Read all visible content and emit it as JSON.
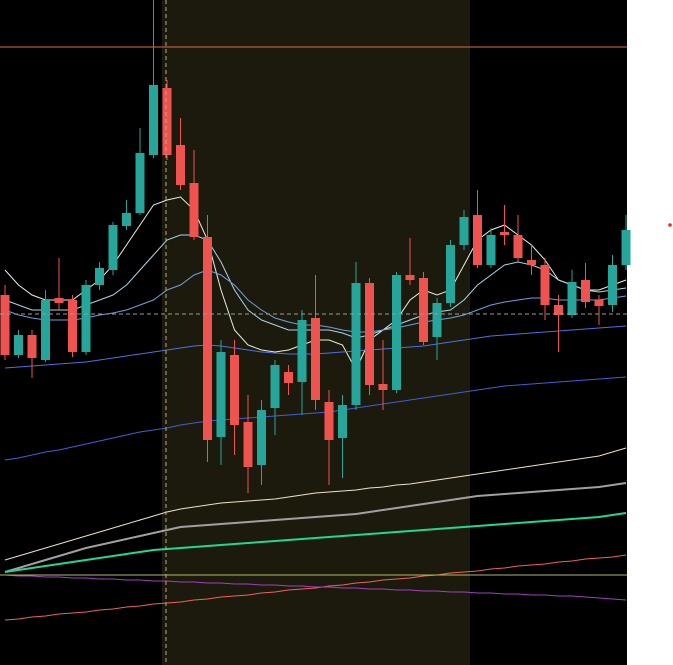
{
  "chart_data": {
    "type": "candlestick",
    "categories": [
      null,
      null,
      null,
      null,
      null,
      null,
      null,
      null,
      null,
      null,
      null,
      null,
      null,
      null,
      null,
      null,
      null,
      null,
      null,
      null,
      null,
      null,
      null,
      null,
      null,
      null,
      null,
      null,
      null,
      null,
      null,
      null,
      null,
      null,
      null,
      null,
      null,
      null,
      null,
      null,
      null,
      null,
      null,
      null,
      null,
      null,
      null
    ],
    "open": [
      370,
      310,
      330,
      305,
      367,
      365,
      313,
      380,
      395,
      439,
      452,
      510,
      577,
      520,
      482,
      428,
      228,
      310,
      243,
      200,
      257,
      293,
      283,
      347,
      263,
      227,
      260,
      382,
      281,
      275,
      390,
      387,
      328,
      362,
      420,
      450,
      400,
      433,
      430,
      405,
      400,
      360,
      350,
      385,
      365,
      360,
      400
    ],
    "close": [
      310,
      330,
      307,
      365,
      362,
      313,
      380,
      397,
      440,
      452,
      512,
      580,
      510,
      480,
      428,
      225,
      313,
      240,
      198,
      255,
      300,
      282,
      345,
      265,
      225,
      260,
      382,
      280,
      275,
      390,
      385,
      323,
      362,
      420,
      448,
      400,
      430,
      430,
      407,
      400,
      360,
      350,
      383,
      363,
      359,
      400,
      435
    ],
    "high": [
      380,
      335,
      335,
      375,
      407,
      370,
      385,
      403,
      443,
      465,
      537,
      665,
      585,
      547,
      515,
      450,
      325,
      325,
      270,
      265,
      305,
      300,
      355,
      390,
      275,
      270,
      403,
      387,
      325,
      393,
      427,
      393,
      367,
      425,
      455,
      475,
      437,
      460,
      450,
      420,
      407,
      370,
      395,
      402,
      370,
      410,
      450
    ],
    "low": [
      305,
      307,
      287,
      303,
      355,
      308,
      310,
      375,
      390,
      435,
      450,
      507,
      505,
      475,
      425,
      203,
      200,
      210,
      172,
      180,
      230,
      270,
      250,
      255,
      180,
      187,
      255,
      270,
      255,
      272,
      380,
      320,
      305,
      358,
      415,
      397,
      397,
      420,
      403,
      390,
      345,
      313,
      347,
      357,
      340,
      353,
      395
    ],
    "up_color": "#26a69a",
    "down_color": "#ef5350",
    "ylim": [
      0,
      665
    ],
    "lines": [
      {
        "color": "#e8f0e0",
        "values": [
          395,
          380,
          370,
          365,
          365,
          365,
          375,
          385,
          400,
          420,
          440,
          460,
          465,
          468,
          455,
          425,
          375,
          335,
          320,
          315,
          313,
          315,
          320,
          325,
          325,
          320,
          295,
          325,
          335,
          345,
          365,
          375,
          370,
          375,
          400,
          425,
          435,
          440,
          430,
          420,
          405,
          385,
          380,
          375,
          375,
          380,
          385
        ]
      },
      {
        "color": "#a8d4e8",
        "values": [
          365,
          360,
          355,
          355,
          355,
          355,
          360,
          365,
          370,
          380,
          395,
          410,
          425,
          430,
          430,
          425,
          403,
          375,
          355,
          345,
          340,
          335,
          335,
          335,
          335,
          332,
          327,
          330,
          335,
          340,
          345,
          350,
          353,
          355,
          365,
          380,
          390,
          400,
          403,
          400,
          395,
          385,
          380,
          375,
          373,
          375,
          377
        ]
      },
      {
        "color": "#6f9fe0",
        "values": [
          355,
          350,
          347,
          345,
          345,
          345,
          347,
          350,
          352,
          355,
          360,
          365,
          375,
          380,
          390,
          395,
          390,
          380,
          365,
          355,
          347,
          343,
          340,
          340,
          338,
          335,
          333,
          333,
          335,
          337,
          340,
          343,
          345,
          347,
          350,
          355,
          360,
          363,
          365,
          367,
          367,
          365,
          365,
          365,
          365,
          367,
          369
        ]
      },
      {
        "color": "#4f6fe0",
        "values": [
          297,
          298,
          299,
          300,
          301,
          302,
          303,
          305,
          307,
          309,
          311,
          313,
          315,
          317,
          319,
          320,
          319,
          317,
          315,
          313,
          312,
          311,
          311,
          311,
          312,
          313,
          314,
          315,
          316,
          317,
          318,
          319,
          321,
          323,
          325,
          327,
          329,
          330,
          331,
          332,
          333,
          334,
          335,
          336,
          337,
          338,
          339
        ]
      },
      {
        "color": "#3f5fd8",
        "values": [
          205,
          207,
          210,
          213,
          215,
          218,
          221,
          224,
          227,
          230,
          233,
          235,
          237,
          240,
          242,
          244,
          245,
          246,
          247,
          248,
          249,
          250,
          251,
          252,
          253,
          255,
          257,
          259,
          261,
          263,
          265,
          267,
          269,
          271,
          273,
          275,
          277,
          279,
          280,
          281,
          282,
          283,
          284,
          285,
          286,
          287,
          288
        ]
      },
      {
        "color": "#f0e0c8",
        "values": [
          105,
          109,
          113,
          117,
          121,
          125,
          129,
          133,
          137,
          141,
          145,
          149,
          153,
          156,
          158,
          160,
          162,
          163,
          164,
          165,
          166,
          168,
          170,
          172,
          173,
          174,
          175,
          177,
          178,
          180,
          181,
          183,
          185,
          187,
          189,
          191,
          193,
          195,
          197,
          199,
          201,
          203,
          205,
          207,
          209,
          213,
          217
        ]
      },
      {
        "color": "#a0a0a0",
        "width": 2,
        "values": [
          93,
          97,
          101,
          105,
          109,
          113,
          117,
          120,
          123,
          126,
          129,
          132,
          135,
          138,
          139,
          140,
          141,
          142,
          143,
          144,
          145,
          146,
          147,
          148,
          149,
          150,
          151,
          153,
          155,
          157,
          159,
          161,
          163,
          165,
          167,
          169,
          170,
          171,
          172,
          173,
          174,
          175,
          176,
          177,
          178,
          180,
          182
        ]
      },
      {
        "color": "#20d890",
        "width": 2,
        "values": [
          93,
          95,
          97,
          99,
          101,
          103,
          105,
          107,
          109,
          111,
          113,
          115,
          116,
          117,
          118,
          119,
          120,
          121,
          122,
          123,
          124,
          125,
          126,
          127,
          128,
          129,
          130,
          131,
          132,
          133,
          134,
          135,
          136,
          137,
          138,
          139,
          140,
          141,
          142,
          143,
          144,
          145,
          146,
          147,
          148,
          150,
          152
        ]
      },
      {
        "color": "#f06060",
        "values": [
          45,
          46,
          48,
          49,
          51,
          52,
          53,
          55,
          56,
          58,
          59,
          61,
          62,
          63,
          65,
          66,
          68,
          69,
          70,
          72,
          73,
          75,
          76,
          77,
          79,
          80,
          82,
          83,
          85,
          86,
          87,
          89,
          90,
          92,
          93,
          94,
          96,
          97,
          99,
          100,
          101,
          103,
          104,
          106,
          107,
          108,
          110
        ]
      },
      {
        "color": "#a040c0",
        "values": [
          90,
          89,
          89,
          88,
          88,
          87,
          87,
          86,
          86,
          85,
          85,
          84,
          84,
          83,
          83,
          82,
          82,
          81,
          81,
          80,
          80,
          79,
          79,
          78,
          78,
          77,
          77,
          76,
          76,
          75,
          75,
          74,
          74,
          73,
          73,
          72,
          72,
          71,
          71,
          70,
          70,
          69,
          69,
          68,
          67,
          66,
          65
        ]
      }
    ],
    "hlines": [
      {
        "value": 618,
        "color": "#e06a4a"
      },
      {
        "value": 90,
        "color": "#b0b868"
      }
    ]
  }
}
